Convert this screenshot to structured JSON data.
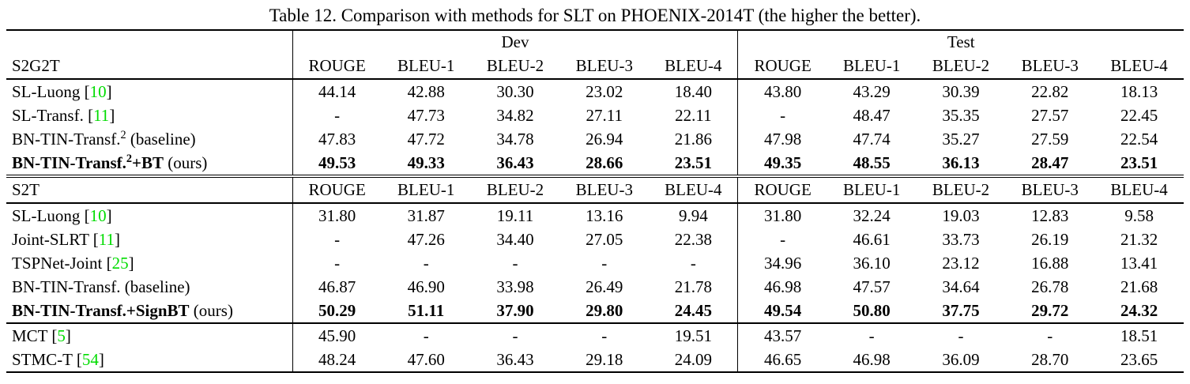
{
  "title": "Table 12. Comparison with methods for SLT on PHOENIX-2014T (the higher the better).",
  "colors": {
    "citation_green": "#00dc00",
    "text": "#000000",
    "background": "#ffffff"
  },
  "groups": {
    "dev": "Dev",
    "test": "Test"
  },
  "metrics": [
    "ROUGE",
    "BLEU-1",
    "BLEU-2",
    "BLEU-3",
    "BLEU-4"
  ],
  "sections": [
    {
      "id": "s2g2t",
      "header": "S2G2T",
      "rows": [
        {
          "label_parts": [
            {
              "t": "SL-Luong "
            },
            {
              "t": "["
            },
            {
              "t": "10",
              "cite": true
            },
            {
              "t": "]"
            }
          ],
          "bold": false,
          "dev": [
            "44.14",
            "42.88",
            "30.30",
            "23.02",
            "18.40"
          ],
          "test": [
            "43.80",
            "43.29",
            "30.39",
            "22.82",
            "18.13"
          ]
        },
        {
          "label_parts": [
            {
              "t": "SL-Transf. "
            },
            {
              "t": "["
            },
            {
              "t": "11",
              "cite": true
            },
            {
              "t": "]"
            }
          ],
          "bold": false,
          "dev": [
            "-",
            "47.73",
            "34.82",
            "27.11",
            "22.11"
          ],
          "test": [
            "-",
            "48.47",
            "35.35",
            "27.57",
            "22.45"
          ]
        },
        {
          "label_parts": [
            {
              "t": "BN-TIN-Transf."
            },
            {
              "t": "2",
              "sup": true
            },
            {
              "t": " (baseline)"
            }
          ],
          "bold": false,
          "dev": [
            "47.83",
            "47.72",
            "34.78",
            "26.94",
            "21.86"
          ],
          "test": [
            "47.98",
            "47.74",
            "35.27",
            "27.59",
            "22.54"
          ]
        },
        {
          "label_parts": [
            {
              "t": "BN-TIN-Transf.",
              "b": true
            },
            {
              "t": "2",
              "sup": true,
              "b": true
            },
            {
              "t": "+BT",
              "b": true
            },
            {
              "t": " (ours)"
            }
          ],
          "bold": true,
          "dev": [
            "49.53",
            "49.33",
            "36.43",
            "28.66",
            "23.51"
          ],
          "test": [
            "49.35",
            "48.55",
            "36.13",
            "28.47",
            "23.51"
          ]
        }
      ]
    },
    {
      "id": "s2t",
      "header": "S2T",
      "rows": [
        {
          "label_parts": [
            {
              "t": "SL-Luong "
            },
            {
              "t": "["
            },
            {
              "t": "10",
              "cite": true
            },
            {
              "t": "]"
            }
          ],
          "bold": false,
          "dev": [
            "31.80",
            "31.87",
            "19.11",
            "13.16",
            "9.94"
          ],
          "test": [
            "31.80",
            "32.24",
            "19.03",
            "12.83",
            "9.58"
          ]
        },
        {
          "label_parts": [
            {
              "t": "Joint-SLRT "
            },
            {
              "t": "["
            },
            {
              "t": "11",
              "cite": true
            },
            {
              "t": "]"
            }
          ],
          "bold": false,
          "dev": [
            "-",
            "47.26",
            "34.40",
            "27.05",
            "22.38"
          ],
          "test": [
            "-",
            "46.61",
            "33.73",
            "26.19",
            "21.32"
          ]
        },
        {
          "label_parts": [
            {
              "t": "TSPNet-Joint "
            },
            {
              "t": "["
            },
            {
              "t": "25",
              "cite": true
            },
            {
              "t": "]"
            }
          ],
          "bold": false,
          "dev": [
            "-",
            "-",
            "-",
            "-",
            "-"
          ],
          "test": [
            "34.96",
            "36.10",
            "23.12",
            "16.88",
            "13.41"
          ]
        },
        {
          "label_parts": [
            {
              "t": "BN-TIN-Transf. (baseline)"
            }
          ],
          "bold": false,
          "dev": [
            "46.87",
            "46.90",
            "33.98",
            "26.49",
            "21.78"
          ],
          "test": [
            "46.98",
            "47.57",
            "34.64",
            "26.78",
            "21.68"
          ]
        },
        {
          "label_parts": [
            {
              "t": "BN-TIN-Transf.+SignBT",
              "b": true
            },
            {
              "t": " (ours)"
            }
          ],
          "bold": true,
          "dev": [
            "50.29",
            "51.11",
            "37.90",
            "29.80",
            "24.45"
          ],
          "test": [
            "49.54",
            "50.80",
            "37.75",
            "29.72",
            "24.32"
          ]
        }
      ]
    },
    {
      "id": "other-methods",
      "header": null,
      "rows": [
        {
          "label_parts": [
            {
              "t": "MCT "
            },
            {
              "t": "["
            },
            {
              "t": "5",
              "cite": true
            },
            {
              "t": "]"
            }
          ],
          "bold": false,
          "dev": [
            "45.90",
            "-",
            "-",
            "-",
            "19.51"
          ],
          "test": [
            "43.57",
            "-",
            "-",
            "-",
            "18.51"
          ]
        },
        {
          "label_parts": [
            {
              "t": "STMC-T "
            },
            {
              "t": "["
            },
            {
              "t": "54",
              "cite": true
            },
            {
              "t": "]"
            }
          ],
          "bold": false,
          "dev": [
            "48.24",
            "47.60",
            "36.43",
            "29.18",
            "24.09"
          ],
          "test": [
            "46.65",
            "46.98",
            "36.09",
            "28.70",
            "23.65"
          ]
        }
      ]
    }
  ]
}
